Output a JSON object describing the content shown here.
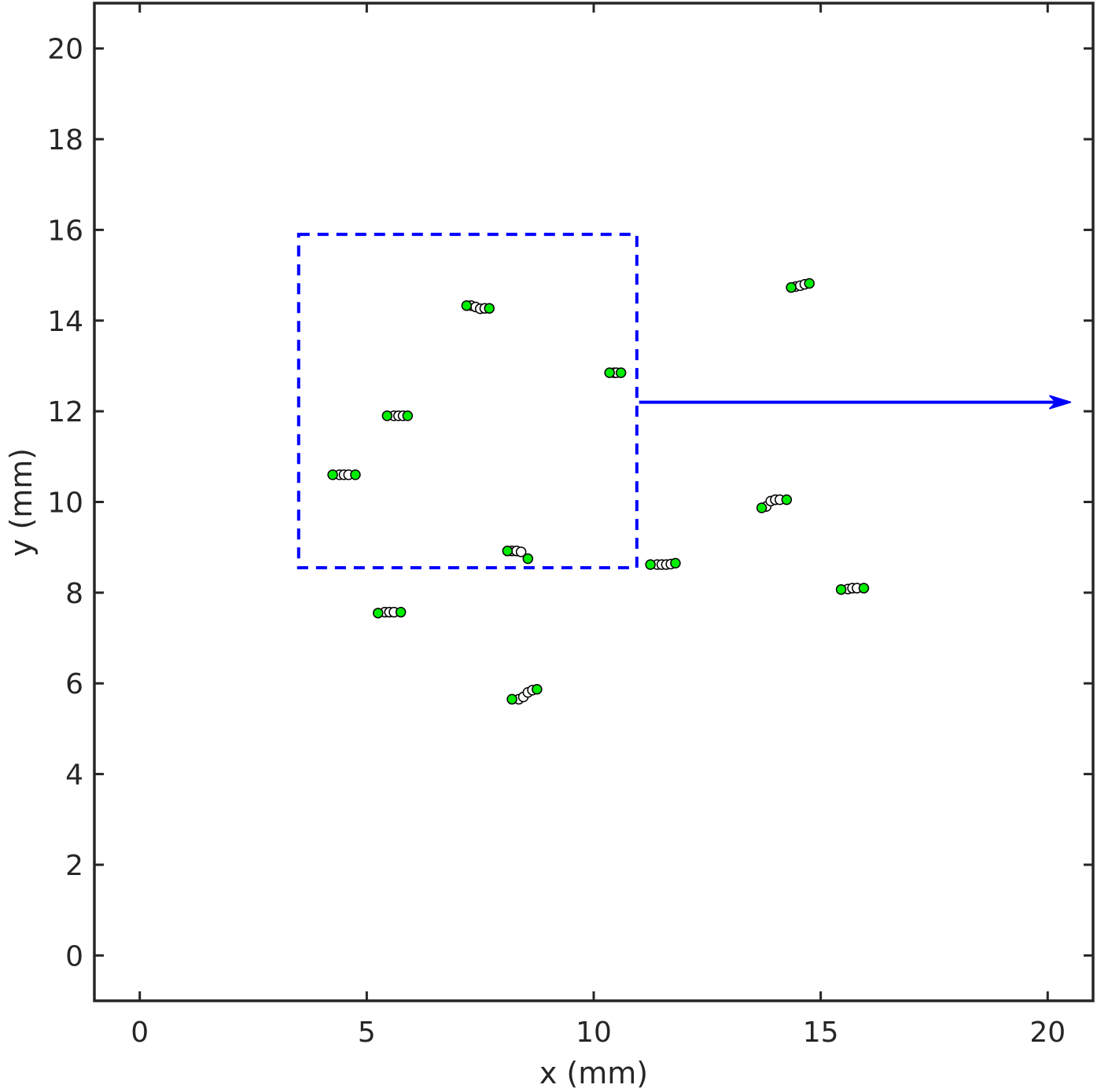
{
  "chart_data": {
    "type": "scatter",
    "xlabel": "x (mm)",
    "ylabel": "y (mm)",
    "xlim": [
      -1,
      21
    ],
    "ylim": [
      -1,
      21
    ],
    "xticks": [
      0,
      5,
      10,
      15,
      20
    ],
    "yticks": [
      0,
      2,
      4,
      6,
      8,
      10,
      12,
      14,
      16,
      18,
      20
    ],
    "grid": false,
    "marker_colors": {
      "endpoint": "#00ee00",
      "intermediate": "#ffffff",
      "edge": "#000000"
    },
    "annotations": {
      "box": {
        "x0": 3.5,
        "x1": 10.95,
        "y0": 8.55,
        "y1": 15.9,
        "color": "#0000ff",
        "style": "dashed"
      },
      "arrow": {
        "x0": 11.0,
        "y": 12.2,
        "x1": 20.5,
        "color": "#0000ff"
      }
    },
    "tracks": [
      {
        "points": [
          [
            4.25,
            10.6
          ],
          [
            4.4,
            10.6
          ],
          [
            4.5,
            10.6
          ],
          [
            4.6,
            10.6
          ],
          [
            4.75,
            10.6
          ]
        ]
      },
      {
        "points": [
          [
            5.45,
            11.9
          ],
          [
            5.6,
            11.9
          ],
          [
            5.7,
            11.9
          ],
          [
            5.8,
            11.9
          ],
          [
            5.9,
            11.9
          ]
        ]
      },
      {
        "points": [
          [
            7.2,
            14.33
          ],
          [
            7.3,
            14.33
          ],
          [
            7.4,
            14.3
          ],
          [
            7.5,
            14.26
          ],
          [
            7.6,
            14.27
          ],
          [
            7.7,
            14.27
          ]
        ]
      },
      {
        "points": [
          [
            10.35,
            12.85
          ],
          [
            10.45,
            12.85
          ],
          [
            10.5,
            12.85
          ],
          [
            10.6,
            12.85
          ]
        ]
      },
      {
        "points": [
          [
            8.1,
            8.92
          ],
          [
            8.2,
            8.92
          ],
          [
            8.3,
            8.92
          ],
          [
            8.4,
            8.9
          ],
          [
            8.55,
            8.75
          ]
        ]
      },
      {
        "points": [
          [
            5.25,
            7.55
          ],
          [
            5.4,
            7.57
          ],
          [
            5.5,
            7.57
          ],
          [
            5.6,
            7.57
          ],
          [
            5.75,
            7.57
          ]
        ]
      },
      {
        "points": [
          [
            8.2,
            5.65
          ],
          [
            8.35,
            5.65
          ],
          [
            8.45,
            5.7
          ],
          [
            8.55,
            5.8
          ],
          [
            8.65,
            5.85
          ],
          [
            8.75,
            5.87
          ]
        ]
      },
      {
        "points": [
          [
            11.25,
            8.62
          ],
          [
            11.4,
            8.62
          ],
          [
            11.5,
            8.62
          ],
          [
            11.6,
            8.62
          ],
          [
            11.7,
            8.63
          ],
          [
            11.8,
            8.65
          ]
        ]
      },
      {
        "points": [
          [
            13.7,
            9.87
          ],
          [
            13.8,
            9.9
          ],
          [
            13.9,
            10.02
          ],
          [
            14.0,
            10.05
          ],
          [
            14.1,
            10.05
          ],
          [
            14.25,
            10.05
          ]
        ]
      },
      {
        "points": [
          [
            14.35,
            14.73
          ],
          [
            14.45,
            14.75
          ],
          [
            14.55,
            14.77
          ],
          [
            14.65,
            14.8
          ],
          [
            14.75,
            14.82
          ]
        ]
      },
      {
        "points": [
          [
            15.45,
            8.07
          ],
          [
            15.6,
            8.08
          ],
          [
            15.7,
            8.1
          ],
          [
            15.8,
            8.1
          ],
          [
            15.95,
            8.1
          ]
        ]
      }
    ]
  }
}
